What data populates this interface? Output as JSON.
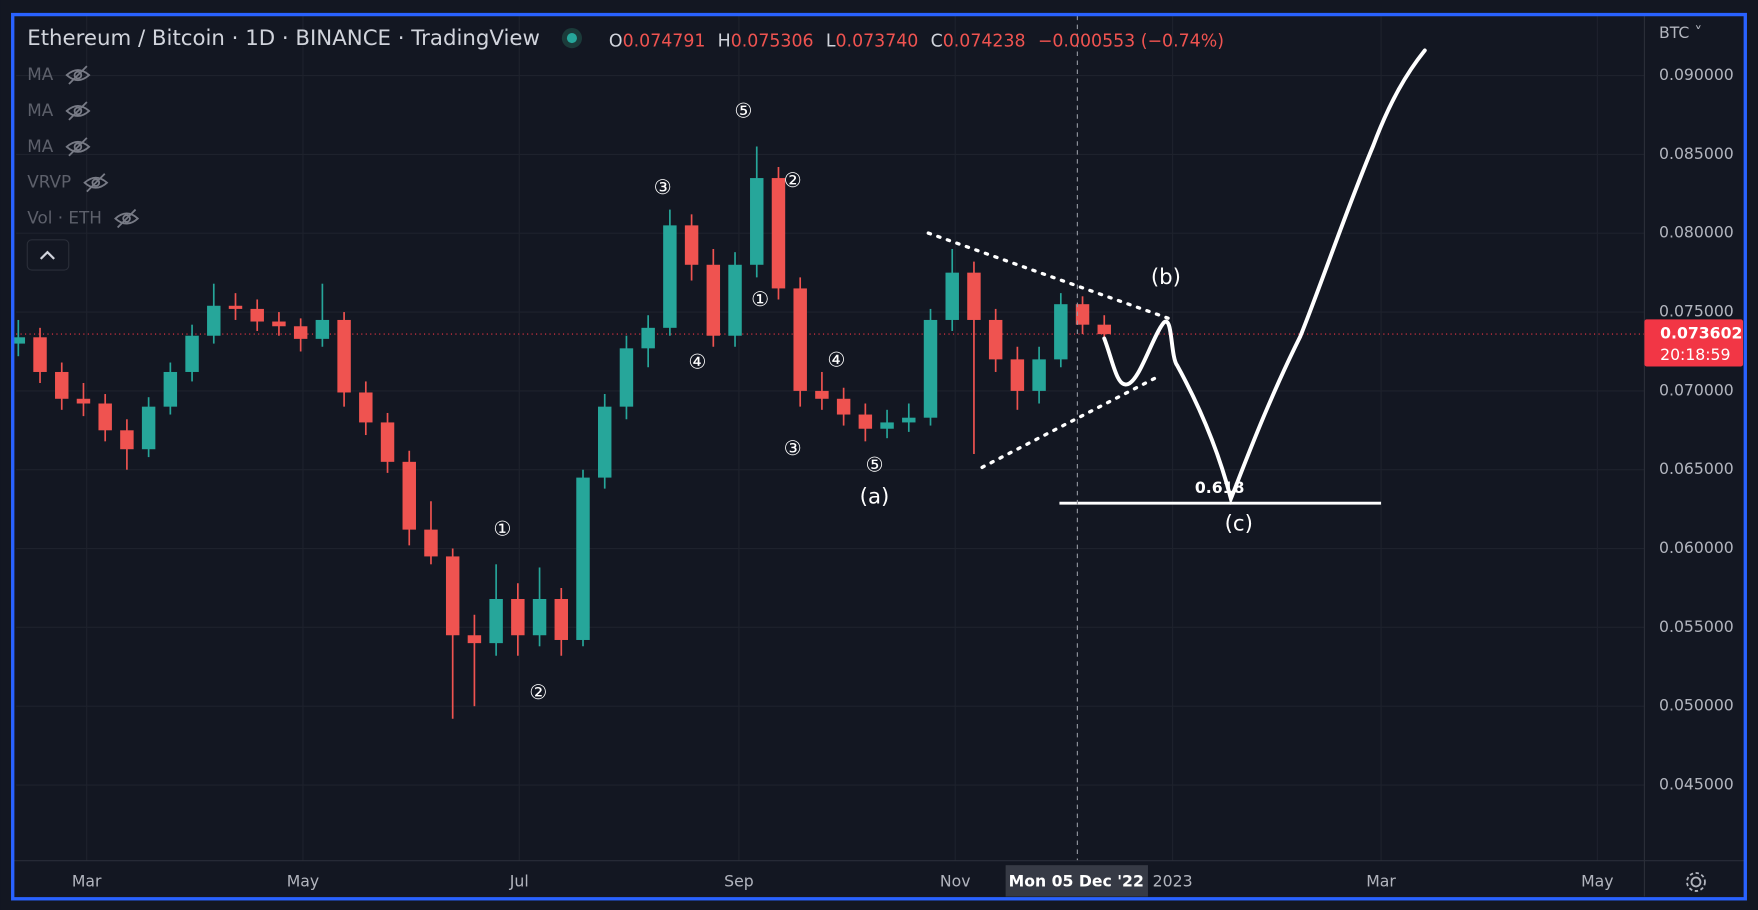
{
  "header": {
    "title": "Ethereum / Bitcoin · 1D · BINANCE · TradingView",
    "ohlc": [
      {
        "label": "O",
        "value": "0.074791"
      },
      {
        "label": "H",
        "value": "0.075306"
      },
      {
        "label": "L",
        "value": "0.073740"
      },
      {
        "label": "C",
        "value": "0.074238"
      }
    ],
    "change": "−0.000553 (−0.74%)"
  },
  "indicators": [
    "MA",
    "MA",
    "MA",
    "VRVP",
    "Vol · ETH"
  ],
  "currency": "BTC ˅",
  "last_price": {
    "value": 0.073602,
    "countdown": "20:18:59"
  },
  "crosshair_date": "Mon 05 Dec '22",
  "chart_data": {
    "type": "candlestick",
    "up_color": "#26a69a",
    "down_color": "#ef5350",
    "ylim": [
      0.0402,
      0.0938
    ],
    "yticks": [
      {
        "value": 0.09,
        "label": "0.090000"
      },
      {
        "value": 0.085,
        "label": "0.085000"
      },
      {
        "value": 0.08,
        "label": "0.080000"
      },
      {
        "value": 0.075,
        "label": "0.075000"
      },
      {
        "value": 0.07,
        "label": "0.070000"
      },
      {
        "value": 0.065,
        "label": "0.065000"
      },
      {
        "value": 0.06,
        "label": "0.060000"
      },
      {
        "value": 0.055,
        "label": "0.055000"
      },
      {
        "value": 0.05,
        "label": "0.050000"
      },
      {
        "value": 0.045,
        "label": "0.045000"
      }
    ],
    "x_labels": [
      "Mar",
      "May",
      "Jul",
      "Sep",
      "Nov",
      "2023",
      "Mar",
      "May"
    ],
    "ohlc": [
      [
        0.073,
        0.0745,
        0.0722,
        0.0734
      ],
      [
        0.0734,
        0.074,
        0.0705,
        0.0712
      ],
      [
        0.0712,
        0.0718,
        0.0688,
        0.0695
      ],
      [
        0.0695,
        0.0705,
        0.0684,
        0.0692
      ],
      [
        0.0692,
        0.0698,
        0.0668,
        0.0675
      ],
      [
        0.0675,
        0.0682,
        0.065,
        0.0663
      ],
      [
        0.0663,
        0.0696,
        0.0658,
        0.069
      ],
      [
        0.069,
        0.0718,
        0.0685,
        0.0712
      ],
      [
        0.0712,
        0.0742,
        0.0706,
        0.0735
      ],
      [
        0.0735,
        0.0768,
        0.073,
        0.0754
      ],
      [
        0.0754,
        0.0762,
        0.0745,
        0.0752
      ],
      [
        0.0752,
        0.0758,
        0.0738,
        0.0744
      ],
      [
        0.0744,
        0.075,
        0.0735,
        0.0741
      ],
      [
        0.0741,
        0.0746,
        0.0725,
        0.0733
      ],
      [
        0.0733,
        0.0768,
        0.0728,
        0.0745
      ],
      [
        0.0745,
        0.075,
        0.069,
        0.0699
      ],
      [
        0.0699,
        0.0706,
        0.0672,
        0.068
      ],
      [
        0.068,
        0.0686,
        0.0648,
        0.0655
      ],
      [
        0.0655,
        0.0662,
        0.0602,
        0.0612
      ],
      [
        0.0612,
        0.063,
        0.059,
        0.0595
      ],
      [
        0.0595,
        0.06,
        0.0492,
        0.0545
      ],
      [
        0.0545,
        0.0558,
        0.05,
        0.054
      ],
      [
        0.054,
        0.059,
        0.0532,
        0.0568
      ],
      [
        0.0568,
        0.0578,
        0.0532,
        0.0545
      ],
      [
        0.0545,
        0.0588,
        0.0538,
        0.0568
      ],
      [
        0.0568,
        0.0575,
        0.0532,
        0.0542
      ],
      [
        0.0542,
        0.065,
        0.0538,
        0.0645
      ],
      [
        0.0645,
        0.0698,
        0.0638,
        0.069
      ],
      [
        0.069,
        0.0735,
        0.0682,
        0.0727
      ],
      [
        0.0727,
        0.0748,
        0.0715,
        0.074
      ],
      [
        0.074,
        0.0815,
        0.0735,
        0.0805
      ],
      [
        0.0805,
        0.0812,
        0.077,
        0.078
      ],
      [
        0.078,
        0.079,
        0.0728,
        0.0735
      ],
      [
        0.0735,
        0.0788,
        0.0728,
        0.078
      ],
      [
        0.078,
        0.0855,
        0.0772,
        0.0835
      ],
      [
        0.0835,
        0.0842,
        0.0758,
        0.0765
      ],
      [
        0.0765,
        0.0772,
        0.069,
        0.07
      ],
      [
        0.07,
        0.0712,
        0.0688,
        0.0695
      ],
      [
        0.0695,
        0.0702,
        0.0678,
        0.0685
      ],
      [
        0.0685,
        0.0692,
        0.0668,
        0.0676
      ],
      [
        0.0676,
        0.0688,
        0.067,
        0.068
      ],
      [
        0.068,
        0.0692,
        0.0674,
        0.0683
      ],
      [
        0.0683,
        0.0752,
        0.0678,
        0.0745
      ],
      [
        0.0745,
        0.079,
        0.0738,
        0.0775
      ],
      [
        0.0775,
        0.0782,
        0.066,
        0.0745
      ],
      [
        0.0745,
        0.0752,
        0.0712,
        0.072
      ],
      [
        0.072,
        0.0728,
        0.0688,
        0.07
      ],
      [
        0.07,
        0.0728,
        0.0692,
        0.072
      ],
      [
        0.072,
        0.0762,
        0.0715,
        0.0755
      ],
      [
        0.0755,
        0.076,
        0.0736,
        0.0742
      ],
      [
        0.0742,
        0.0748,
        0.0734,
        0.0736
      ]
    ]
  },
  "annotations": [
    "③",
    "⑤",
    "②",
    "①",
    "④",
    "④",
    "③",
    "⑤",
    "(a)",
    "①",
    "②",
    "(b)",
    "(c)",
    "0.618"
  ]
}
